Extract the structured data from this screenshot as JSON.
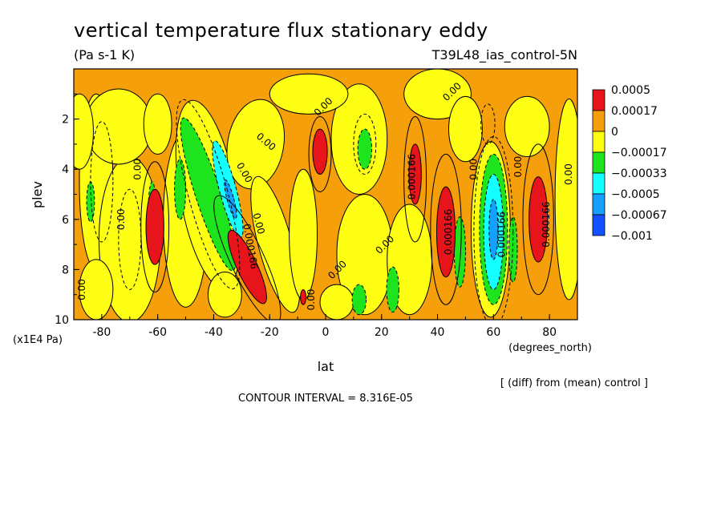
{
  "chart_data": {
    "type": "heatmap",
    "title": "vertical temperature flux stationary eddy",
    "units": "(Pa s-1 K)",
    "run_label": "T39L48_ias_control-5N",
    "xlabel": "lat",
    "x_units": "(degrees_north)",
    "ylabel": "plev",
    "y_units": "(x1E4 Pa)",
    "xlim": [
      -90,
      90
    ],
    "ylim": [
      0,
      10
    ],
    "x_ticks": [
      "-80",
      "-60",
      "-40",
      "-20",
      "0",
      "20",
      "40",
      "60",
      "80"
    ],
    "y_ticks": [
      "2",
      "4",
      "6",
      "8",
      "10"
    ],
    "note": "[ (diff) from (mean) control ]",
    "contour_interval": "CONTOUR INTERVAL = 8.316E-05",
    "legend": {
      "labels": [
        "0.0005",
        "0.00017",
        "0",
        "−0.00017",
        "−0.00033",
        "−0.0005",
        "−0.00067",
        "−0.001"
      ],
      "colors": [
        "#e8141c",
        "#f5a00a",
        "#ffff14",
        "#1ee41e",
        "#14ffff",
        "#14a0ff",
        "#1450ff"
      ]
    },
    "contour_labels": [
      "0.00",
      "0.00",
      "0.00",
      "0.00",
      "0.00",
      "0.00",
      "0.00",
      "0.00",
      "0.00",
      "0.00",
      "0.00",
      "0.00",
      "0.00",
      "0.000166",
      "0.000166",
      "0.000166",
      "0.000166",
      "0.000166",
      "0.00"
    ],
    "features": [
      {
        "lat": -61,
        "plev": 6.3,
        "value": 0.0005
      },
      {
        "lat": -28,
        "plev": 8.0,
        "value": 0.0005
      },
      {
        "lat": -2,
        "plev": 3.3,
        "value": 0.0005
      },
      {
        "lat": 32,
        "plev": 4.2,
        "value": 0.0005
      },
      {
        "lat": 43,
        "plev": 6.5,
        "value": 0.0005
      },
      {
        "lat": 76,
        "plev": 6.0,
        "value": 0.0005
      },
      {
        "lat": -35,
        "plev": 4.8,
        "value": -0.0005
      },
      {
        "lat": 60,
        "plev": 6.5,
        "value": -0.0005
      },
      {
        "lat": -42,
        "plev": 5.0,
        "value": -0.00033
      },
      {
        "lat": 14,
        "plev": 3.2,
        "value": -0.00033
      },
      {
        "lat": 12,
        "plev": 9.2,
        "value": -0.00033
      },
      {
        "lat": -84,
        "plev": 5.3,
        "value": -0.00033
      },
      {
        "lat": 48,
        "plev": 7.3,
        "value": -0.00033
      }
    ]
  }
}
